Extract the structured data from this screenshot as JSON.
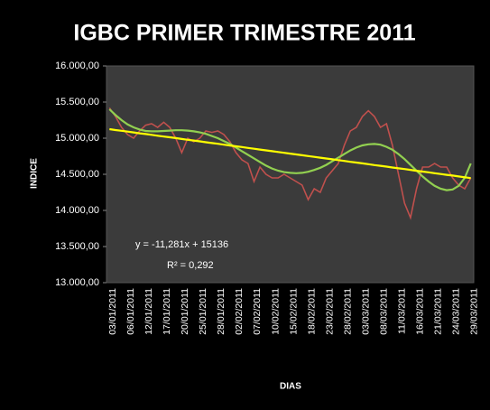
{
  "chart_data": {
    "type": "line",
    "title": "IGBC PRIMER TRIMESTRE 2011",
    "x_label": "DIAS",
    "y_label": "INDICE",
    "annotations": [
      "y = -11,281x + 15136",
      "R² = 0,292"
    ],
    "categories": [
      "03/01/2011",
      null,
      null,
      "06/01/2011",
      null,
      null,
      "12/01/2011",
      null,
      null,
      "17/01/2011",
      null,
      null,
      "20/01/2011",
      null,
      null,
      "25/01/2011",
      null,
      null,
      "28/01/2011",
      null,
      null,
      "02/02/2011",
      null,
      null,
      "07/02/2011",
      null,
      null,
      "10/02/2011",
      null,
      null,
      "15/02/2011",
      null,
      null,
      "18/02/2011",
      null,
      null,
      "23/02/2011",
      null,
      null,
      "28/02/2011",
      null,
      null,
      "03/03/2011",
      null,
      null,
      "08/03/2011",
      null,
      null,
      "11/03/2011",
      null,
      null,
      "16/03/2011",
      null,
      null,
      "21/03/2011",
      null,
      null,
      "24/03/2011",
      null,
      null,
      "29/03/2011"
    ],
    "series": [
      {
        "color": "#c0504d",
        "values": [
          15420,
          15300,
          15150,
          15050,
          15000,
          15100,
          15180,
          15200,
          15150,
          15220,
          15150,
          15000,
          14800,
          15000,
          14950,
          15000,
          15100,
          15080,
          15100,
          15050,
          14950,
          14800,
          14700,
          14650,
          14400,
          14600,
          14500,
          14450,
          14450,
          14500,
          14450,
          14400,
          14350,
          14150,
          14300,
          14250,
          14450,
          14550,
          14650,
          14900,
          15100,
          15150,
          15300,
          15380,
          15300,
          15150,
          15200,
          14900,
          14500,
          14100,
          13900,
          14300,
          14600,
          14600,
          14650,
          14600,
          14600,
          14450,
          14350,
          14300,
          14450
        ]
      },
      {
        "color": "#92d050",
        "values": [
          15400,
          15320,
          15250,
          15190,
          15150,
          15120,
          15100,
          15095,
          15095,
          15100,
          15105,
          15110,
          15110,
          15105,
          15095,
          15080,
          15060,
          15030,
          15000,
          14960,
          14920,
          14870,
          14820,
          14770,
          14720,
          14670,
          14620,
          14580,
          14550,
          14530,
          14520,
          14515,
          14520,
          14535,
          14560,
          14590,
          14630,
          14680,
          14730,
          14780,
          14830,
          14870,
          14900,
          14915,
          14920,
          14910,
          14880,
          14840,
          14780,
          14710,
          14630,
          14550,
          14470,
          14400,
          14340,
          14300,
          14280,
          14290,
          14340,
          14450,
          14650
        ]
      },
      {
        "color": "#ffff00",
        "values": [
          15125,
          15113,
          15102,
          15091,
          15080,
          15068,
          15057,
          15046,
          15034,
          15023,
          15012,
          15001,
          14989,
          14978,
          14967,
          14956,
          14944,
          14933,
          14922,
          14910,
          14899,
          14888,
          14877,
          14865,
          14854,
          14843,
          14831,
          14820,
          14809,
          14798,
          14786,
          14775,
          14764,
          14752,
          14741,
          14730,
          14719,
          14707,
          14696,
          14685,
          14673,
          14662,
          14651,
          14640,
          14628,
          14617,
          14606,
          14594,
          14583,
          14572,
          14561,
          14549,
          14538,
          14527,
          14515,
          14504,
          14493,
          14482,
          14470,
          14459,
          14448
        ]
      }
    ],
    "ylim": [
      13000,
      16000
    ],
    "yticks": [
      {
        "value": 13000,
        "label": "13.000,00"
      },
      {
        "value": 13500,
        "label": "13.500,00"
      },
      {
        "value": 14000,
        "label": "14.000,00"
      },
      {
        "value": 14500,
        "label": "14.500,00"
      },
      {
        "value": 15000,
        "label": "15.000,00"
      },
      {
        "value": 15500,
        "label": "15.500,00"
      },
      {
        "value": 16000,
        "label": "16.000,00"
      }
    ],
    "grid": false
  }
}
